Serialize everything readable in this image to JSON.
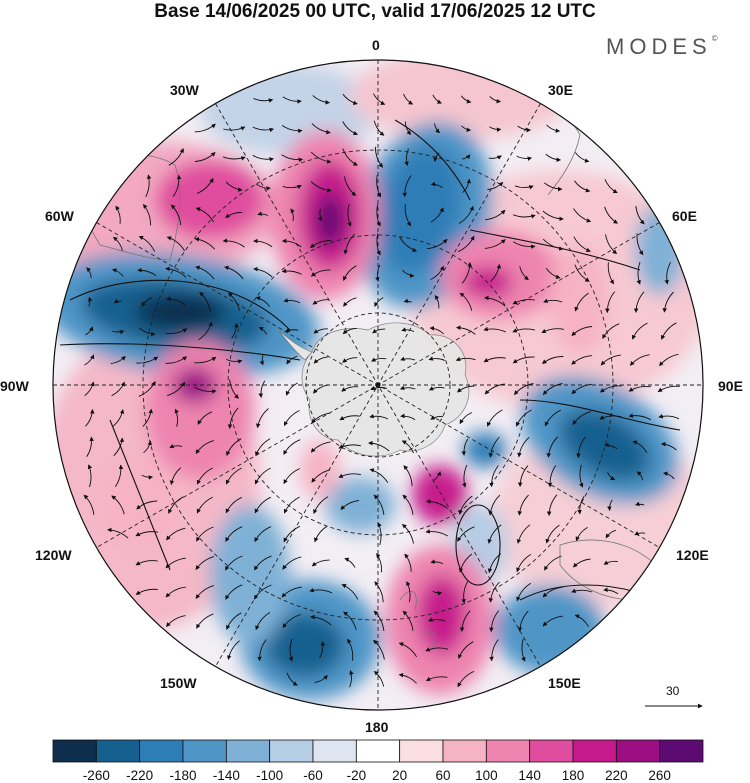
{
  "title": "Base 14/06/2025 00 UTC, valid 17/06/2025 12 UTC",
  "brand": "MODES",
  "brand_mark": "©",
  "longitude_labels": {
    "lon_0": "0",
    "lon_30e": "30E",
    "lon_60e": "60E",
    "lon_90e": "90E",
    "lon_120e": "120E",
    "lon_150e": "150E",
    "lon_180": "180",
    "lon_150w": "150W",
    "lon_120w": "120W",
    "lon_90w": "90W",
    "lon_60w": "60W",
    "lon_30w": "30W"
  },
  "reference_vector": {
    "value": "30"
  },
  "colorbar": {
    "ticks": [
      "-260",
      "-220",
      "-180",
      "-140",
      "-100",
      "-60",
      "-20",
      "20",
      "60",
      "100",
      "140",
      "180",
      "220",
      "260"
    ],
    "colors": [
      "#0d2f4d",
      "#16608f",
      "#2d7db6",
      "#4f96c7",
      "#7fb1d6",
      "#b5cde5",
      "#dfe4f1",
      "#ffffff",
      "#fbdfe0",
      "#f6b3c4",
      "#ee84b0",
      "#e04d9e",
      "#c61a8c",
      "#9c0d84",
      "#5d0a73"
    ]
  },
  "map_features": {
    "projection": "south-polar-stereographic",
    "land_color": "#e6e6e6",
    "icon": "antarctica-landmass"
  }
}
